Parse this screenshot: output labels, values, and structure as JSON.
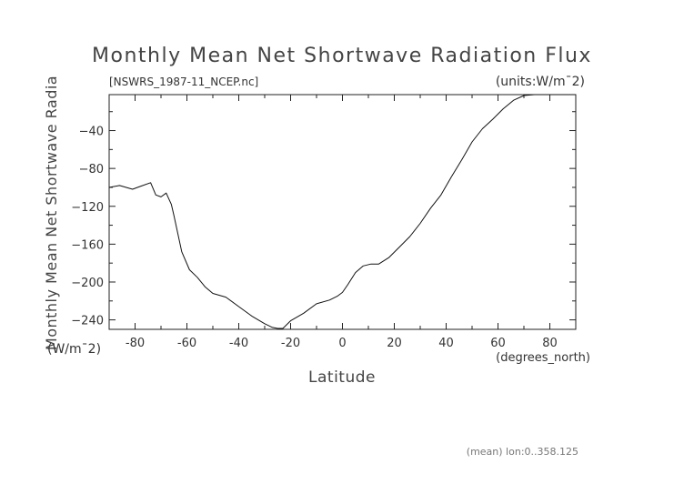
{
  "chart_data": {
    "type": "line",
    "title": "Monthly Mean Net Shortwave Radiation Flux",
    "file_label": "[NSWRS_1987-11_NCEP.nc]",
    "units_label": "(units:W/m¯2)",
    "xlabel": "Latitude",
    "x_unit_label": "(degrees_north)",
    "ylabel": "Monthly Mean Net Shortwave Radia",
    "y_unit_label": "(W/m¯2)",
    "footer": "(mean) lon:0..358.125",
    "xlim": [
      -90,
      90
    ],
    "ylim": [
      -250,
      -2
    ],
    "x_ticks": [
      -80,
      -60,
      -40,
      -20,
      0,
      20,
      40,
      60,
      80
    ],
    "y_ticks": [
      -40,
      -80,
      -120,
      -160,
      -200,
      -240
    ],
    "series": [
      {
        "x": [
          -90,
          -86,
          -81,
          -78,
          -74,
          -72,
          -70,
          -68,
          -66,
          -65,
          -62,
          -59,
          -56,
          -53,
          -50,
          -45,
          -40,
          -35,
          -30,
          -27,
          -25,
          -23,
          -20,
          -15,
          -10,
          -5,
          -2,
          0,
          2,
          5,
          8,
          11,
          14,
          18,
          22,
          26,
          30,
          34,
          38,
          42,
          46,
          50,
          54,
          58,
          62,
          66,
          70,
          74,
          78,
          82,
          86,
          90
        ],
        "y": [
          -100,
          -98,
          -102,
          -99,
          -95,
          -108,
          -110,
          -106,
          -118,
          -130,
          -168,
          -187,
          -195,
          -205,
          -212,
          -216,
          -226,
          -236,
          -244,
          -248,
          -249,
          -249,
          -241,
          -233,
          -223,
          -219,
          -215,
          -211,
          -203,
          -190,
          -183,
          -181,
          -181,
          -174,
          -163,
          -152,
          -138,
          -122,
          -108,
          -89,
          -71,
          -52,
          -38,
          -28,
          -17,
          -8,
          -3,
          -2,
          -2,
          -2,
          -2,
          -2
        ]
      }
    ]
  }
}
